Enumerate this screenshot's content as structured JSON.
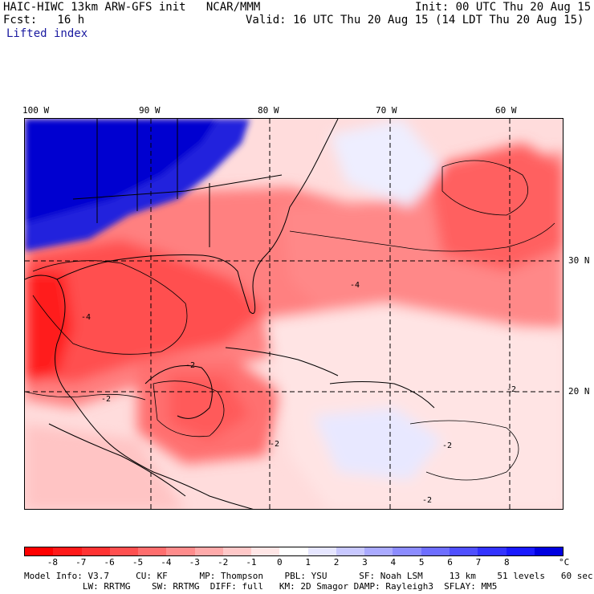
{
  "header": {
    "title_left": "HAIC-HIWC 13km ARW-GFS init   NCAR/MMM",
    "init": "Init: 00 UTC Thu 20 Aug 15",
    "fcst": "Fcst:   16 h",
    "valid": "Valid: 16 UTC Thu 20 Aug 15 (14 LDT Thu 20 Aug 15)",
    "field": "Lifted index"
  },
  "map": {
    "lon_labels": [
      "100 W",
      "90 W",
      "80 W",
      "70 W",
      "60 W"
    ],
    "lat_labels": [
      "30 N",
      "20 N"
    ],
    "contour_labels": [
      "-2",
      "-2",
      "-2",
      "-4",
      "-4",
      "-2",
      "-2",
      "-2"
    ]
  },
  "colorbar": {
    "colors": [
      "#ff0000",
      "#ff1a1a",
      "#ff3333",
      "#ff5050",
      "#ff6e6e",
      "#ff8c8c",
      "#ffaaaa",
      "#ffc8c8",
      "#ffe6e6",
      "#ffffff",
      "#e6e6ff",
      "#c8c8ff",
      "#aaaaff",
      "#8c8cff",
      "#6e6eff",
      "#5050ff",
      "#3333ff",
      "#1a1aff",
      "#0000e0"
    ],
    "tick_labels": [
      "-8",
      "-7",
      "-6",
      "-5",
      "-4",
      "-3",
      "-2",
      "-1",
      "0",
      "1",
      "2",
      "3",
      "4",
      "5",
      "6",
      "7",
      "8"
    ],
    "unit": "°C"
  },
  "footer": {
    "line1": "Model Info: V3.7     CU: KF      MP: Thompson    PBL: YSU      SF: Noah LSM     13 km    51 levels   60 sec",
    "line2": "           LW: RRTMG    SW: RRTMG  DIFF: full   KM: 2D Smagor DAMP: Rayleigh3  SFLAY: MM5"
  }
}
